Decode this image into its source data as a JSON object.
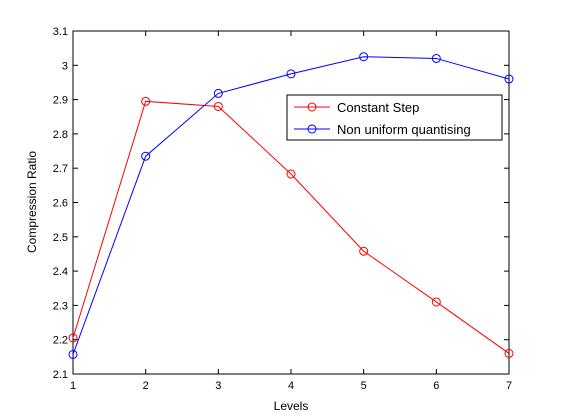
{
  "chart_data": {
    "type": "line",
    "xlabel": "Levels",
    "ylabel": "Compression Ratio",
    "xlim": [
      1,
      7
    ],
    "ylim": [
      2.1,
      3.1
    ],
    "x_ticks": [
      "1",
      "2",
      "3",
      "4",
      "5",
      "6",
      "7"
    ],
    "y_ticks": [
      "2.1",
      "2.2",
      "2.3",
      "2.4",
      "2.5",
      "2.6",
      "2.7",
      "2.8",
      "2.9",
      "3",
      "3.1"
    ],
    "grid": false,
    "legend_position": "top-right",
    "x": [
      1,
      2,
      3,
      4,
      5,
      6,
      7
    ],
    "series": [
      {
        "name": "Constant Step",
        "color": "#ff0000",
        "marker": "circle",
        "values": [
          2.205,
          2.895,
          2.88,
          2.683,
          2.458,
          2.31,
          2.16
        ]
      },
      {
        "name": "Non uniform quantising",
        "color": "#0000ff",
        "marker": "circle",
        "values": [
          2.157,
          2.735,
          2.918,
          2.975,
          3.025,
          3.02,
          2.96
        ]
      }
    ]
  }
}
